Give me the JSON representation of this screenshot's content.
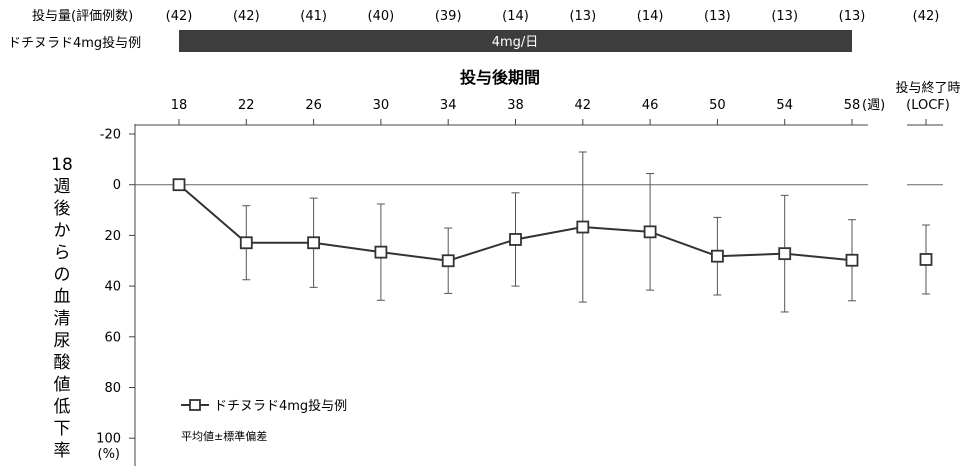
{
  "header": {
    "dose_count_label": "投与量(評価例数)",
    "counts": [
      "(42)",
      "(42)",
      "(41)",
      "(40)",
      "(39)",
      "(14)",
      "(13)",
      "(14)",
      "(13)",
      "(13)",
      "(13)",
      "(42)"
    ],
    "group_label": "ドチヌラド4mg投与例",
    "dose_bar_label": "4mg/日"
  },
  "chart_data": {
    "type": "line",
    "title": "投与後期間",
    "xlabel": "投与後期間",
    "ylabel": "18週後からの血清尿酸値低下率",
    "x_unit": "(週)",
    "y_unit": "(%)",
    "categories": [
      "18",
      "22",
      "26",
      "30",
      "34",
      "38",
      "42",
      "46",
      "50",
      "54",
      "58"
    ],
    "x": [
      18,
      22,
      26,
      30,
      34,
      38,
      42,
      46,
      50,
      54,
      58
    ],
    "yticks": [
      "-20",
      "0",
      "20",
      "40",
      "60",
      "80",
      "100"
    ],
    "ylim": [
      -20,
      100
    ],
    "y_inverted": true,
    "grid": false,
    "series": [
      {
        "name": "ドチヌラド4mg投与例",
        "values": [
          0,
          22.9,
          22.9,
          26.6,
          30.0,
          21.6,
          16.7,
          18.6,
          28.2,
          27.2,
          29.8
        ],
        "sd": [
          0,
          14.6,
          17.6,
          19.0,
          12.9,
          18.4,
          29.6,
          23.0,
          15.3,
          23.0,
          16.0
        ],
        "marker": "open-square"
      }
    ],
    "locf": {
      "label_line1": "投与終了時",
      "label_line2": "(LOCF)",
      "value": 29.5,
      "sd": 13.6
    },
    "legend": {
      "position": "bottom-left",
      "note": "平均値±標準偏差"
    }
  }
}
